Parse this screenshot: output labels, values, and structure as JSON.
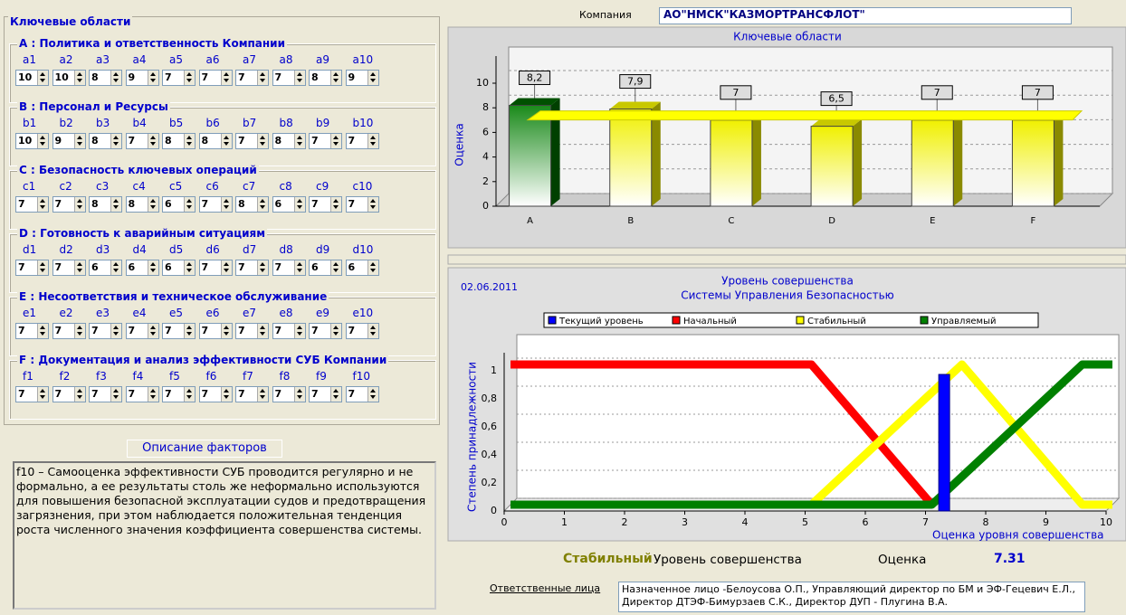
{
  "panel": {
    "title": "Ключевые области",
    "groups": [
      {
        "title": "A : Политика и ответственность Компании",
        "labels": [
          "a1",
          "a2",
          "a3",
          "a4",
          "a5",
          "a6",
          "a7",
          "a8",
          "a9",
          "a10"
        ],
        "values": [
          10,
          10,
          8,
          9,
          7,
          7,
          7,
          7,
          8,
          9
        ]
      },
      {
        "title": "B : Персонал и Ресурсы",
        "labels": [
          "b1",
          "b2",
          "b3",
          "b4",
          "b5",
          "b6",
          "b7",
          "b8",
          "b9",
          "b10"
        ],
        "values": [
          10,
          9,
          8,
          7,
          8,
          8,
          7,
          8,
          7,
          7
        ]
      },
      {
        "title": "C : Безопасность ключевых операций",
        "labels": [
          "c1",
          "c2",
          "c3",
          "c4",
          "c5",
          "c6",
          "c7",
          "c8",
          "c9",
          "c10"
        ],
        "values": [
          7,
          7,
          8,
          8,
          6,
          7,
          8,
          6,
          7,
          7
        ]
      },
      {
        "title": "D : Готовность к аварийным ситуациям",
        "labels": [
          "d1",
          "d2",
          "d3",
          "d4",
          "d5",
          "d6",
          "d7",
          "d8",
          "d9",
          "d10"
        ],
        "values": [
          7,
          7,
          6,
          6,
          6,
          7,
          7,
          7,
          6,
          6
        ]
      },
      {
        "title": "E : Несоответствия и техническое обслуживание",
        "labels": [
          "e1",
          "e2",
          "e3",
          "e4",
          "e5",
          "e6",
          "e7",
          "e8",
          "e9",
          "e10"
        ],
        "values": [
          7,
          7,
          7,
          7,
          7,
          7,
          7,
          7,
          7,
          7
        ]
      },
      {
        "title": "F : Документация и анализ эффективности СУБ Компании",
        "labels": [
          "f1",
          "f2",
          "f3",
          "f4",
          "f5",
          "f6",
          "f7",
          "f8",
          "f9",
          "f10"
        ],
        "values": [
          7,
          7,
          7,
          7,
          7,
          7,
          7,
          7,
          7,
          7
        ]
      }
    ]
  },
  "description": {
    "title": "Описание факторов",
    "text": "f10 – Самооценка эффективности СУБ проводится регулярно и не формально, а ее результаты столь же неформально используются для повышения безопасной эксплуатации судов и предотвращения загрязнения, при этом наблюдается положительная тенденция роста численного значения коэффициента совершенства системы."
  },
  "company": {
    "label": "Компания",
    "value": "АО\"НМСК\"КАЗМОРТРАНСФЛОТ\""
  },
  "chart_data": [
    {
      "type": "bar",
      "title": "Ключевые области",
      "y_label": "Оценка",
      "categories": [
        "A",
        "B",
        "C",
        "D",
        "E",
        "F"
      ],
      "values": [
        8.2,
        7.9,
        7,
        6.5,
        7,
        7
      ],
      "value_labels": [
        "8,2",
        "7,9",
        "7",
        "6,5",
        "7",
        "7"
      ],
      "colors": [
        "#1a8a1a",
        "#f0f000",
        "#f0f000",
        "#f0f000",
        "#f0f000",
        "#f0f000"
      ],
      "ylim": [
        0,
        10
      ],
      "yticks": [
        0,
        2,
        4,
        6,
        8,
        10
      ]
    },
    {
      "type": "line",
      "date": "02.06.2011",
      "title": [
        "Уровень совершенства",
        "Системы Управления Безопасностью"
      ],
      "y_label": "Степень принадлежности",
      "x_label": "Оценка уровня совершенства",
      "xlim": [
        0,
        10
      ],
      "ylim": [
        0,
        1
      ],
      "xticks": [
        0,
        1,
        2,
        3,
        4,
        5,
        6,
        7,
        8,
        9,
        10
      ],
      "yticks": [
        0,
        {
          "value": 0.2,
          "label": "0,2"
        },
        {
          "value": 0.4,
          "label": "0,4"
        },
        {
          "value": 0.6,
          "label": "0,6"
        },
        {
          "value": 0.8,
          "label": "0,8"
        },
        1
      ],
      "series": [
        {
          "name": "Текущий уровень",
          "color": "#0000ff"
        },
        {
          "name": "Начальный",
          "color": "#ff0000",
          "x": [
            0,
            5,
            7
          ],
          "values": [
            1,
            1,
            0
          ]
        },
        {
          "name": "Стабильный",
          "color": "#ffff00",
          "x": [
            0,
            5,
            7.5,
            9.5,
            10
          ],
          "values": [
            0,
            0,
            1,
            0,
            0
          ]
        },
        {
          "name": "Управляемый",
          "color": "#008000",
          "x": [
            0,
            7,
            9.5,
            10
          ],
          "values": [
            0,
            0,
            1,
            1
          ]
        }
      ]
    }
  ],
  "result": {
    "level": "Стабильный",
    "level_label": "Уровень совершенства",
    "score_label": "Оценка",
    "score": 7.31
  },
  "responsible": {
    "label": "Ответственные лица",
    "text": "Назначенное лицо -Белоусова О.П., Управляющий директор по БМ и ЭФ-Гецевич Е.Л., Директор ДТЭФ-Бимурзаев С.К., Директор ДУП - Плугина В.А."
  }
}
